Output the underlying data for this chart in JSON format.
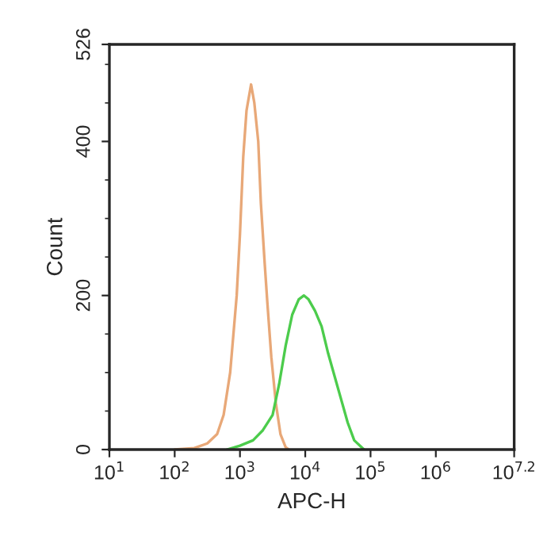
{
  "chart_data": {
    "type": "line",
    "xlabel": "APC-H",
    "ylabel": "Count",
    "log": "x",
    "xlim": [
      10,
      15848932
    ],
    "xticks": [
      {
        "value": 10,
        "label": "10$^{1}$"
      },
      {
        "value": 100,
        "label": "10$^{2}$"
      },
      {
        "value": 1000,
        "label": "10$^{3}$"
      },
      {
        "value": 10000,
        "label": "10$^{4}$"
      },
      {
        "value": 100000,
        "label": "10$^{5}$"
      },
      {
        "value": 1000000,
        "label": "10$^{6}$"
      },
      {
        "value": 15848932,
        "label": "10$^{7.2}$"
      }
    ],
    "ylim": [
      0,
      526
    ],
    "yticks": [
      0,
      200,
      400,
      526
    ],
    "grid": false,
    "legend": false,
    "marker": "none",
    "line_style": "solid",
    "series": [
      {
        "color": "#e8a878",
        "x": [
          100,
          200,
          316,
          447,
          562,
          708,
          891,
          1000,
          1122,
          1259,
          1479,
          1660,
          1905,
          2089,
          2399,
          2630,
          3020,
          3548,
          4169,
          5012,
          5623
        ],
        "values": [
          0,
          2,
          8,
          20,
          45,
          100,
          200,
          280,
          380,
          440,
          474,
          450,
          400,
          320,
          240,
          190,
          120,
          60,
          20,
          3,
          0
        ]
      },
      {
        "color": "#4ccc4c",
        "x": [
          631,
          1000,
          1585,
          2239,
          3162,
          3981,
          5012,
          6310,
          7943,
          9550,
          11220,
          14125,
          17783,
          22387,
          28184,
          35481,
          44668,
          56234,
          79433
        ],
        "values": [
          0,
          5,
          12,
          25,
          45,
          85,
          135,
          175,
          195,
          200,
          195,
          180,
          160,
          125,
          95,
          65,
          35,
          12,
          0
        ]
      }
    ]
  }
}
